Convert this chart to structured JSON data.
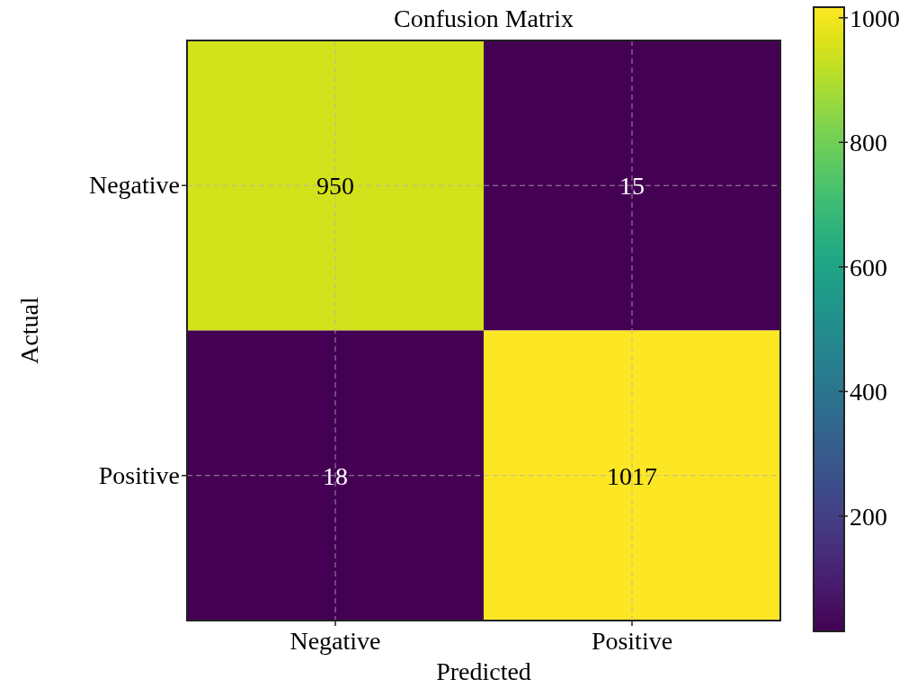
{
  "chart_data": {
    "type": "heatmap",
    "title": "Confusion Matrix",
    "xlabel": "Predicted",
    "ylabel": "Actual",
    "categories": [
      "Negative",
      "Positive"
    ],
    "y_categories": [
      "Negative",
      "Positive"
    ],
    "cells": [
      [
        950,
        15
      ],
      [
        18,
        1017
      ]
    ],
    "data_labels": true,
    "grid": true,
    "clim": [
      15,
      1017
    ],
    "cticks": [
      200,
      400,
      600,
      800,
      1000
    ]
  }
}
